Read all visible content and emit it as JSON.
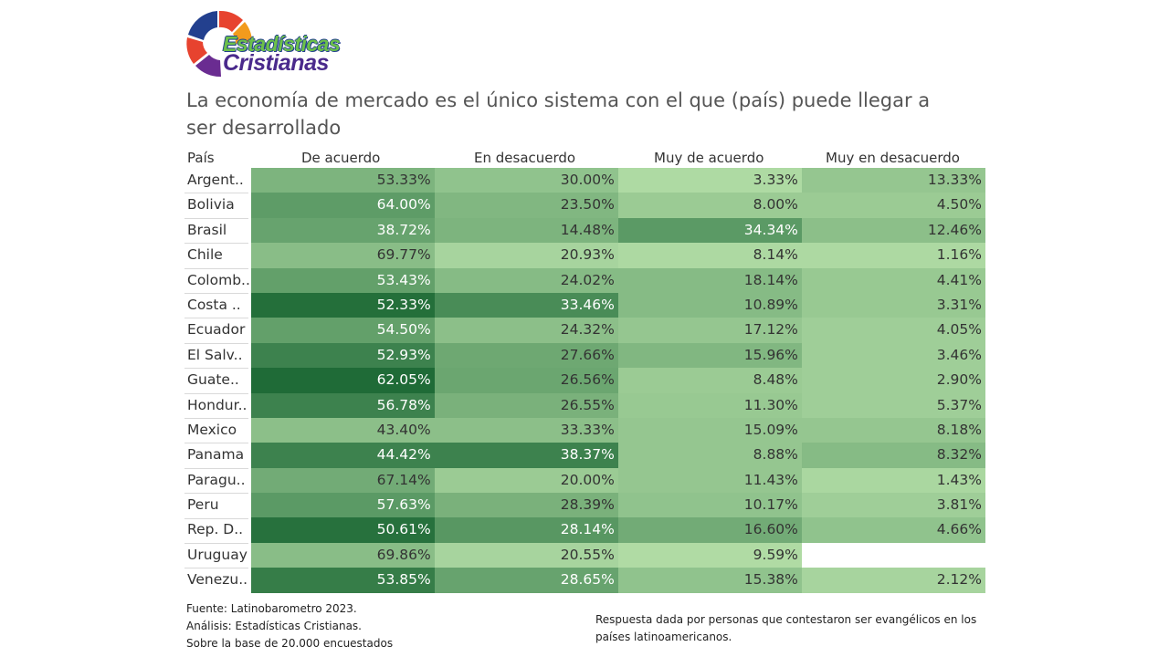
{
  "logo": {
    "line1": "Estadísticas",
    "line2": "Cristianas"
  },
  "colors": {
    "green_light": "#b6e0a9",
    "green_dark": "#1f6b37",
    "text_dark": "#333333",
    "title": "#555555"
  },
  "chart_data": {
    "type": "table",
    "title": "La economía de mercado es el único sistema con el que (país) puede llegar a ser desarrollado",
    "row_header": "País",
    "columns": [
      "De acuerdo",
      "En desacuerdo",
      "Muy de acuerdo",
      "Muy en desacuerdo"
    ],
    "rows": [
      {
        "country": "Argent..",
        "values": [
          "53.33%",
          "30.00%",
          "3.33%",
          "13.33%"
        ],
        "levels": [
          0.38,
          0.25,
          0.05,
          0.22
        ]
      },
      {
        "country": "Bolivia",
        "values": [
          "64.00%",
          "23.50%",
          "8.00%",
          "4.50%"
        ],
        "levels": [
          0.58,
          0.35,
          0.18,
          0.18
        ]
      },
      {
        "country": "Brasil",
        "values": [
          "38.72%",
          "14.48%",
          "34.34%",
          "12.46%"
        ],
        "levels": [
          0.52,
          0.38,
          0.6,
          0.28
        ]
      },
      {
        "country": "Chile",
        "values": [
          "69.77%",
          "20.93%",
          "8.14%",
          "1.16%"
        ],
        "levels": [
          0.3,
          0.1,
          0.06,
          0.06
        ]
      },
      {
        "country": "Colomb..",
        "values": [
          "53.43%",
          "24.02%",
          "18.14%",
          "4.41%"
        ],
        "levels": [
          0.55,
          0.32,
          0.32,
          0.2
        ]
      },
      {
        "country": "Costa ..",
        "values": [
          "52.33%",
          "33.46%",
          "10.89%",
          "3.31%"
        ],
        "levels": [
          0.97,
          0.72,
          0.32,
          0.2
        ]
      },
      {
        "country": "Ecuador",
        "values": [
          "54.50%",
          "24.32%",
          "17.12%",
          "4.05%"
        ],
        "levels": [
          0.55,
          0.28,
          0.22,
          0.15
        ]
      },
      {
        "country": "El Salv..",
        "values": [
          "52.93%",
          "27.66%",
          "15.96%",
          "3.46%"
        ],
        "levels": [
          0.8,
          0.48,
          0.35,
          0.15
        ]
      },
      {
        "country": "Guate..",
        "values": [
          "62.05%",
          "26.56%",
          "8.48%",
          "2.90%"
        ],
        "levels": [
          1.0,
          0.5,
          0.18,
          0.15
        ]
      },
      {
        "country": "Hondur..",
        "values": [
          "56.78%",
          "26.55%",
          "11.30%",
          "5.37%"
        ],
        "levels": [
          0.8,
          0.4,
          0.2,
          0.15
        ]
      },
      {
        "country": "Mexico",
        "values": [
          "43.40%",
          "33.33%",
          "15.09%",
          "8.18%"
        ],
        "levels": [
          0.28,
          0.28,
          0.22,
          0.22
        ]
      },
      {
        "country": "Panama",
        "values": [
          "44.42%",
          "38.37%",
          "8.88%",
          "8.32%"
        ],
        "levels": [
          0.8,
          0.8,
          0.22,
          0.32
        ]
      },
      {
        "country": "Paragu..",
        "values": [
          "67.14%",
          "20.00%",
          "11.43%",
          "1.43%"
        ],
        "levels": [
          0.45,
          0.18,
          0.22,
          0.08
        ]
      },
      {
        "country": "Peru",
        "values": [
          "57.63%",
          "28.39%",
          "10.17%",
          "3.81%"
        ],
        "levels": [
          0.6,
          0.4,
          0.25,
          0.15
        ]
      },
      {
        "country": "Rep. D..",
        "values": [
          "50.61%",
          "28.14%",
          "16.60%",
          "4.66%"
        ],
        "levels": [
          0.95,
          0.62,
          0.45,
          0.25
        ]
      },
      {
        "country": "Uruguay",
        "values": [
          "69.86%",
          "20.55%",
          "9.59%",
          ""
        ],
        "levels": [
          0.3,
          0.1,
          0.04,
          null
        ]
      },
      {
        "country": "Venezu..",
        "values": [
          "53.85%",
          "28.65%",
          "15.38%",
          "2.12%"
        ],
        "levels": [
          0.85,
          0.52,
          0.25,
          0.1
        ]
      }
    ]
  },
  "footer": {
    "source": "Fuente: Latinobarometro 2023.",
    "analysis": "Análisis: Estadísticas Cristianas.",
    "base": "Sobre la base de 20.000 encuestados",
    "note": "Respuesta dada por personas que contestaron ser evangélicos en los países latinoamericanos."
  }
}
